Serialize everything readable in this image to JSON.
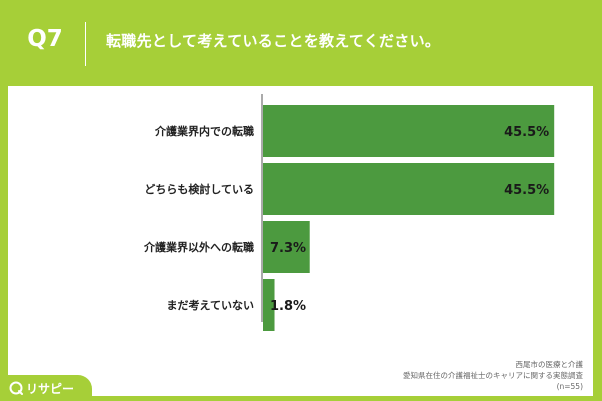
{
  "header": {
    "question_number": "Q7",
    "question_text": "転職先として考えていることを教えてください。"
  },
  "chart_data": {
    "type": "bar",
    "orientation": "horizontal",
    "categories": [
      "介護業界内での転職",
      "どちらも検討している",
      "介護業界以外への転職",
      "まだ考えていない"
    ],
    "values": [
      45.5,
      45.5,
      7.3,
      1.8
    ],
    "value_labels": [
      "45.5%",
      "45.5%",
      "7.3%",
      "1.8%"
    ],
    "xlim": [
      0,
      50
    ],
    "grid": false,
    "bar_color": "#4c9a3f"
  },
  "source": {
    "line1": "西尾市の医療と介護",
    "line2": "愛知県在住の介護福祉士のキャリアに関する実態調査",
    "line3": "(n=55)"
  },
  "logo": {
    "text": "リサピー",
    "icon": "risapy-logo-icon"
  }
}
